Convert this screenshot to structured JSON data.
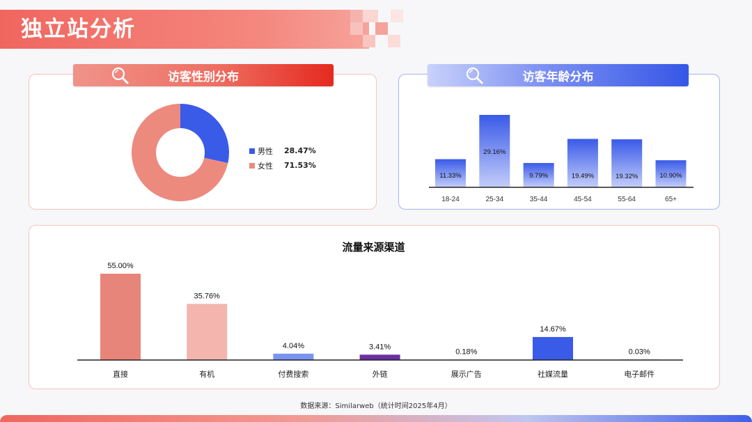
{
  "page": {
    "title": "独立站分析"
  },
  "gender": {
    "tab_label": "访客性别分布",
    "chart_data": {
      "type": "pie",
      "labels": [
        "男性",
        "女性"
      ],
      "values_label": [
        "28.47%",
        "71.53%"
      ],
      "values": [
        28.47,
        71.53
      ],
      "colors": [
        "#3a5ae8",
        "#ec8a7e"
      ],
      "donut": true
    }
  },
  "age": {
    "tab_label": "访客年龄分布",
    "chart_data": {
      "type": "bar",
      "categories": [
        "18-24",
        "25-34",
        "35-44",
        "45-54",
        "55-64",
        "65+"
      ],
      "values": [
        11.33,
        29.16,
        9.79,
        19.49,
        19.32,
        10.9
      ],
      "value_labels": [
        "11.33%",
        "29.16%",
        "9.79%",
        "19.49%",
        "19.32%",
        "10.90%"
      ],
      "ylim": [
        0,
        30
      ],
      "colors": {
        "top": "#3a5ae8",
        "bottom": "#c3cdfa"
      }
    }
  },
  "traffic": {
    "chart_data": {
      "type": "bar",
      "title": "流量来源渠道",
      "categories": [
        "直接",
        "有机",
        "付费搜索",
        "外链",
        "展示广告",
        "社媒流量",
        "电子邮件"
      ],
      "values": [
        55.0,
        35.76,
        4.04,
        3.41,
        0.18,
        14.67,
        0.03
      ],
      "value_labels": [
        "55.00%",
        "35.76%",
        "4.04%",
        "3.41%",
        "0.18%",
        "14.67%",
        "0.03%"
      ],
      "ylim": [
        0,
        55
      ],
      "colors": [
        "#e8857a",
        "#f3b5ae",
        "#7a93ef",
        "#6b2fa0",
        "#e8857a",
        "#3a5ae8",
        "#6b2fa0"
      ]
    }
  },
  "footer": {
    "source": "数据来源：Similarweb（统计时间2025年4月）"
  }
}
